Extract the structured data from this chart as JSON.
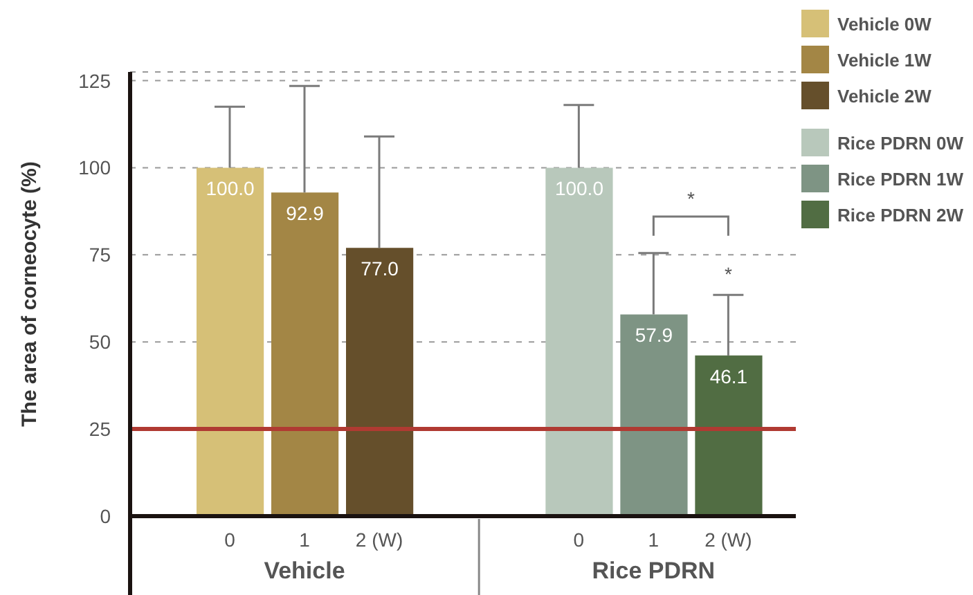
{
  "chart_data": {
    "type": "bar",
    "ylabel": "The area of corneocyte (%)",
    "categories": [
      "0",
      "1",
      "2  (W)",
      "0",
      "1",
      "2  (W)"
    ],
    "series": [
      {
        "name": "Vehicle 0W",
        "color": "#d6c077",
        "values": [
          100,
          null,
          null,
          null,
          null,
          null
        ],
        "value_labels": [
          "100.0",
          null,
          null,
          null,
          null,
          null
        ],
        "errors": [
          [
            100,
            117.5
          ],
          null,
          null,
          null,
          null,
          null
        ]
      },
      {
        "name": "Vehicle 1W",
        "color": "#a38645",
        "values": [
          null,
          92.9,
          null,
          null,
          null,
          null
        ],
        "value_labels": [
          null,
          "92.9",
          null,
          null,
          null,
          null
        ],
        "errors": [
          null,
          [
            92.9,
            123.5
          ],
          null,
          null,
          null,
          null
        ]
      },
      {
        "name": "Vehicle 2W",
        "color": "#654f2b",
        "values": [
          null,
          null,
          77,
          null,
          null,
          null
        ],
        "value_labels": [
          null,
          null,
          "77.0",
          null,
          null,
          null
        ],
        "errors": [
          null,
          null,
          [
            77,
            109
          ],
          null,
          null,
          null
        ]
      },
      {
        "name": "Rice PDRN 0W",
        "color": "#b8c8bb",
        "values": [
          null,
          null,
          null,
          100,
          null,
          null
        ],
        "value_labels": [
          null,
          null,
          null,
          "100.0",
          null,
          null
        ],
        "errors": [
          null,
          null,
          null,
          [
            100,
            118
          ],
          null,
          null
        ]
      },
      {
        "name": "Rice PDRN 1W",
        "color": "#7e9484",
        "values": [
          null,
          null,
          null,
          null,
          57.9,
          null
        ],
        "value_labels": [
          null,
          null,
          null,
          null,
          "57.9",
          null
        ],
        "errors": [
          null,
          null,
          null,
          null,
          [
            57.9,
            75.5
          ],
          null
        ]
      },
      {
        "name": "Rice PDRN 2W",
        "color": "#516d43",
        "values": [
          null,
          null,
          null,
          null,
          null,
          46.1
        ],
        "value_labels": [
          null,
          null,
          null,
          null,
          null,
          "46.1"
        ],
        "errors": [
          null,
          null,
          null,
          null,
          null,
          [
            46.1,
            63.5
          ]
        ]
      }
    ],
    "ylim": [
      0,
      127.5
    ],
    "yticks": [
      0,
      25,
      50,
      75,
      100,
      125
    ],
    "grid": "y",
    "legend": "top right",
    "ref_lines": [
      {
        "axis": "y",
        "value": 25,
        "color": "#b03a32"
      }
    ],
    "annotations": [
      "Vehicle",
      "Rice PDRN",
      "*",
      "*"
    ]
  }
}
